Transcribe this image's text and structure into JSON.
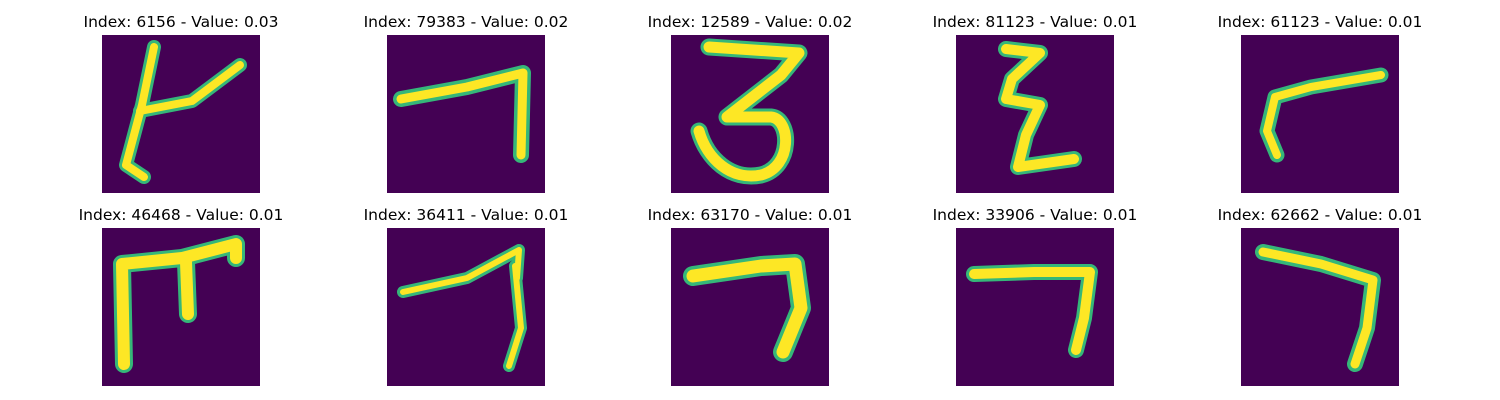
{
  "figure": {
    "background_color": "#440154",
    "stroke_color": "#fde725",
    "edge_color": "#35b779",
    "panels": [
      {
        "title": "Index: 6156 - Value: 0.03",
        "glyph": "hooked-vertical-stroke"
      },
      {
        "title": "Index: 79383 - Value: 0.02",
        "glyph": "angle-seven"
      },
      {
        "title": "Index: 12589 - Value: 0.02",
        "glyph": "three"
      },
      {
        "title": "Index: 81123 - Value: 0.01",
        "glyph": "zigzag"
      },
      {
        "title": "Index: 61123 - Value: 0.01",
        "glyph": "open-angle"
      },
      {
        "title": "Index: 46468 - Value: 0.01",
        "glyph": "gate-shape"
      },
      {
        "title": "Index: 36411 - Value: 0.01",
        "glyph": "slanted-seven"
      },
      {
        "title": "Index: 63170 - Value: 0.01",
        "glyph": "bold-seven"
      },
      {
        "title": "Index: 33906 - Value: 0.01",
        "glyph": "seven"
      },
      {
        "title": "Index: 62662 - Value: 0.01",
        "glyph": "curved-seven"
      }
    ]
  }
}
